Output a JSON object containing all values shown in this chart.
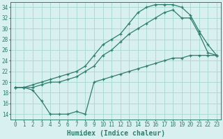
{
  "line_top_x": [
    0,
    1,
    2,
    3,
    4,
    5,
    6,
    7,
    8,
    9,
    10,
    11,
    12,
    13,
    14,
    15,
    16,
    17,
    18,
    19,
    20,
    21,
    22,
    23
  ],
  "line_top_y": [
    19,
    19,
    19.5,
    20,
    20.5,
    21,
    21.5,
    22,
    23,
    25,
    27,
    28,
    29,
    31,
    33,
    34,
    34.5,
    34.5,
    34.5,
    34,
    32.5,
    29.5,
    27,
    25
  ],
  "line_mid_x": [
    0,
    1,
    2,
    3,
    4,
    5,
    6,
    7,
    8,
    9,
    10,
    11,
    12,
    13,
    14,
    15,
    16,
    17,
    18,
    19,
    20,
    21,
    22,
    23
  ],
  "line_mid_y": [
    19,
    19,
    19,
    19.5,
    20,
    20,
    20.5,
    21,
    22,
    23,
    25,
    26,
    27.5,
    29,
    30,
    31,
    32,
    33,
    33.5,
    32,
    32,
    29,
    25.5,
    25
  ],
  "line_bot_x": [
    0,
    1,
    2,
    3,
    4,
    5,
    6,
    7,
    8,
    9,
    10,
    11,
    12,
    13,
    14,
    15,
    16,
    17,
    18,
    19,
    20,
    21,
    22,
    23
  ],
  "line_bot_y": [
    19,
    19,
    18.5,
    16.5,
    14,
    14,
    14,
    14.5,
    14,
    20,
    20.5,
    21,
    21.5,
    22,
    22.5,
    23,
    23.5,
    24,
    24.5,
    24.5,
    25,
    25,
    25,
    25
  ],
  "line_color": "#2e7d6e",
  "bg_color": "#d8f0f0",
  "grid_color": "#a8d8d0",
  "xlabel": "Humidex (Indice chaleur)",
  "xlim": [
    -0.5,
    23.5
  ],
  "ylim": [
    13,
    35
  ],
  "yticks": [
    14,
    16,
    18,
    20,
    22,
    24,
    26,
    28,
    30,
    32,
    34
  ],
  "xticks": [
    0,
    1,
    2,
    3,
    4,
    5,
    6,
    7,
    8,
    9,
    10,
    11,
    12,
    13,
    14,
    15,
    16,
    17,
    18,
    19,
    20,
    21,
    22,
    23
  ],
  "marker": "+",
  "markersize": 3,
  "linewidth": 0.9,
  "xlabel_fontsize": 7,
  "tick_fontsize": 5.5
}
